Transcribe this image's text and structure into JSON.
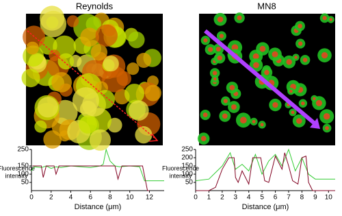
{
  "chart_data": [
    {
      "type": "line",
      "title": "Reynolds",
      "x_label": "Distance (μm)",
      "y_label": [
        "Fluorescence",
        "intensity"
      ],
      "xlim": [
        0,
        13.5
      ],
      "xticks": [
        0,
        2,
        4,
        6,
        8,
        10,
        12
      ],
      "ylim": [
        0,
        250
      ],
      "yticks": [
        50,
        100,
        150,
        250
      ],
      "series": [
        {
          "color": "#33cc33",
          "x": [
            0,
            0.3,
            1,
            1.5,
            2,
            2.5,
            3,
            4,
            5,
            6,
            7,
            7.3,
            7.6,
            8,
            8.5,
            9,
            10,
            11,
            11.5,
            12,
            13.5
          ],
          "values": [
            120,
            145,
            140,
            150,
            135,
            145,
            140,
            150,
            145,
            140,
            150,
            160,
            250,
            180,
            150,
            145,
            150,
            145,
            60,
            60,
            60
          ]
        },
        {
          "color": "#800020",
          "x": [
            0.1,
            1,
            1.2,
            1.5,
            2.3,
            2.5,
            2.8,
            4,
            5,
            6,
            7,
            8.5,
            8.8,
            9.2,
            10,
            11.3,
            11.8,
            12
          ],
          "values": [
            150,
            150,
            80,
            150,
            150,
            100,
            150,
            150,
            150,
            150,
            150,
            150,
            70,
            150,
            150,
            150,
            0,
            0
          ]
        }
      ]
    },
    {
      "type": "line",
      "title": "MN8",
      "x_label": "Distance (μm)",
      "y_label": [
        "Fluorescence",
        "intensity"
      ],
      "xlim": [
        0,
        10.5
      ],
      "xticks": [
        0,
        1,
        2,
        3,
        4,
        5,
        6,
        7,
        8,
        9,
        10
      ],
      "ylim": [
        0,
        250
      ],
      "yticks": [
        50,
        100,
        150,
        200,
        250
      ],
      "series": [
        {
          "color": "#33cc33",
          "x": [
            0,
            1,
            1.5,
            2,
            2.6,
            3,
            3.5,
            4,
            4.5,
            5,
            5.5,
            6,
            6.5,
            7,
            7.5,
            8,
            8.5,
            9,
            10.5
          ],
          "values": [
            60,
            70,
            110,
            150,
            230,
            130,
            160,
            120,
            220,
            100,
            180,
            220,
            150,
            250,
            120,
            200,
            100,
            70,
            70
          ]
        },
        {
          "color": "#800020",
          "x": [
            0,
            1,
            1.5,
            2,
            2.5,
            2.9,
            3,
            3.2,
            3.5,
            4,
            4.3,
            4.9,
            5.2,
            5.5,
            6,
            6.5,
            6.7,
            7,
            7.3,
            7.7,
            8,
            8.3,
            8.5,
            8.8,
            10.5
          ],
          "values": [
            0,
            0,
            20,
            130,
            200,
            200,
            80,
            50,
            120,
            40,
            200,
            200,
            60,
            50,
            210,
            130,
            230,
            150,
            60,
            40,
            200,
            210,
            50,
            0,
            0
          ]
        }
      ]
    }
  ]
}
